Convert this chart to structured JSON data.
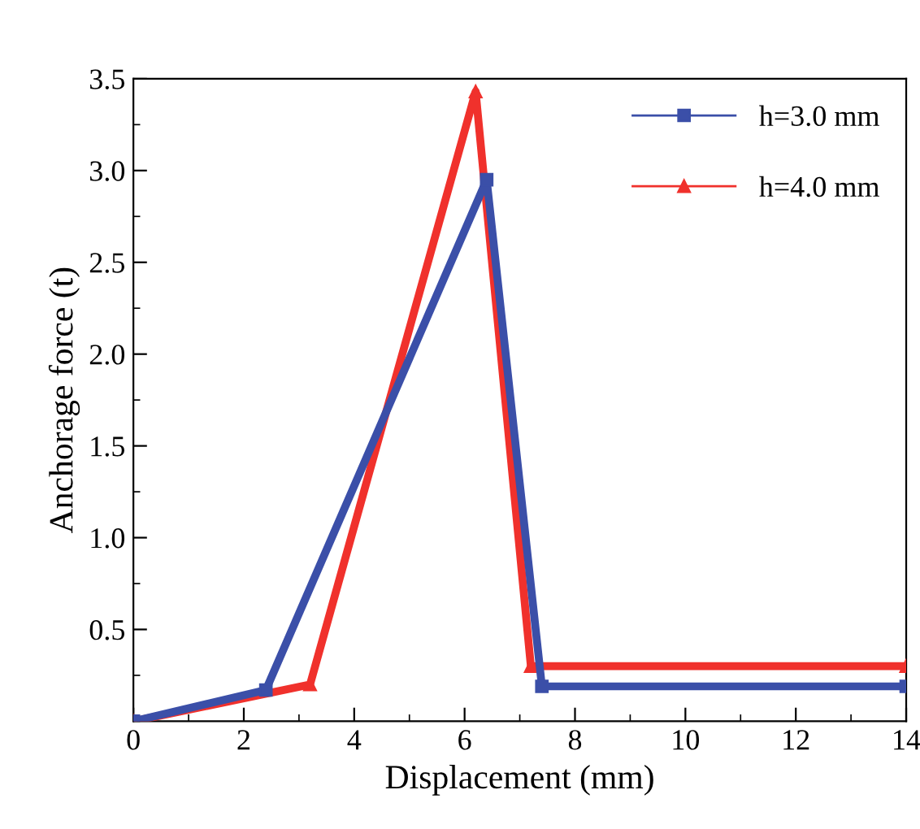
{
  "chart_data": {
    "type": "line",
    "xlabel": "Displacement (mm)",
    "ylabel": "Anchorage force (t)",
    "xlim": [
      0,
      14
    ],
    "ylim": [
      0,
      3.5
    ],
    "xticks": [
      0,
      2,
      4,
      6,
      8,
      10,
      12,
      14
    ],
    "yticks": [
      0.5,
      {
        "value": 1,
        "label": "1.0"
      },
      1.5,
      {
        "value": 2,
        "label": "2.0"
      },
      2.5,
      {
        "value": 3,
        "label": "3.0"
      },
      3.5
    ],
    "legend": "top right",
    "grid": false,
    "series": [
      {
        "name": "h=3.0 mm",
        "color": "#3b4fa8",
        "marker": "square",
        "x": [
          0,
          2.4,
          6.4,
          7.4,
          14
        ],
        "values": [
          0,
          0.17,
          2.95,
          0.19,
          0.19
        ]
      },
      {
        "name": "h=4.0 mm",
        "color": "#f0312c",
        "marker": "triangle",
        "x": [
          0,
          3.2,
          6.2,
          7.2,
          14
        ],
        "values": [
          0,
          0.2,
          3.43,
          0.3,
          0.3
        ]
      }
    ]
  }
}
